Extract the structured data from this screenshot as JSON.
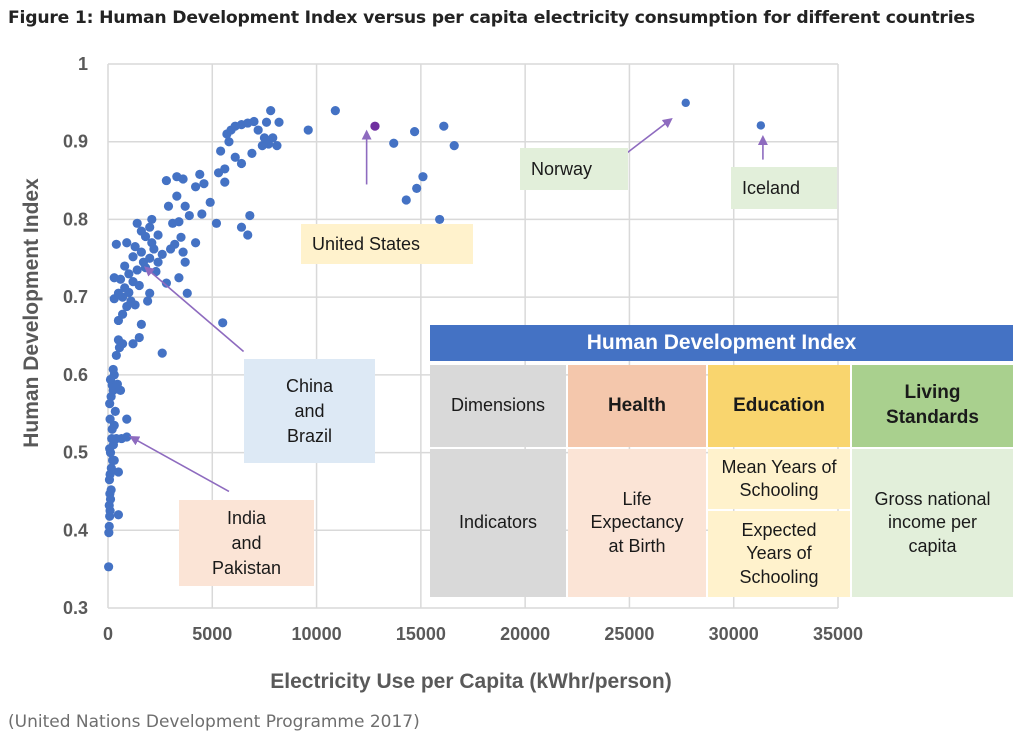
{
  "figure_title": "Figure 1: Human Development Index versus per capita electricity consumption for different countries",
  "source_note": "(United Nations Development Programme 2017)",
  "colors": {
    "points": "#4472c4",
    "highlight_point": "#7030a0",
    "arrow": "#8e6bbf",
    "grid": "#d9d9d9",
    "table_header": "#4472c4",
    "dimension_grey": "#d9d9d9",
    "health_dark": "#f4c7ac",
    "health_light": "#fbe4d6",
    "education_dark": "#f9d56e",
    "education_light": "#fff2cc",
    "living_dark": "#a9d08e",
    "living_light": "#e2efda",
    "us_callout": "#fff2cc",
    "norway_callout": "#e2efda",
    "china_callout": "#dde9f5",
    "india_callout": "#fbe4d6"
  },
  "chart_data": {
    "type": "scatter",
    "title": "",
    "xlabel": "Electricity Use per Capita (kWhr/person)",
    "ylabel": "Human Development Index",
    "xlim": [
      0,
      35000
    ],
    "ylim": [
      0.3,
      1.0
    ],
    "x_ticks": [
      "0",
      "5000",
      "10000",
      "15000",
      "20000",
      "25000",
      "30000",
      "35000"
    ],
    "x_tick_values": [
      0,
      5000,
      10000,
      15000,
      20000,
      25000,
      30000,
      35000
    ],
    "y_ticks": [
      "0.3",
      "0.4",
      "0.5",
      "0.6",
      "0.7",
      "0.8",
      "0.9",
      "1"
    ],
    "y_tick_values": [
      0.3,
      0.4,
      0.5,
      0.6,
      0.7,
      0.8,
      0.9,
      1.0
    ],
    "grid": true,
    "legend": "none",
    "series": [
      {
        "name": "Countries",
        "points": [
          [
            30,
            0.353
          ],
          [
            40,
            0.397
          ],
          [
            60,
            0.405
          ],
          [
            80,
            0.418
          ],
          [
            100,
            0.425
          ],
          [
            60,
            0.432
          ],
          [
            120,
            0.44
          ],
          [
            90,
            0.447
          ],
          [
            150,
            0.452
          ],
          [
            500,
            0.42
          ],
          [
            70,
            0.465
          ],
          [
            100,
            0.472
          ],
          [
            160,
            0.48
          ],
          [
            220,
            0.49
          ],
          [
            120,
            0.5
          ],
          [
            80,
            0.505
          ],
          [
            300,
            0.49
          ],
          [
            500,
            0.475
          ],
          [
            260,
            0.51
          ],
          [
            180,
            0.518
          ],
          [
            400,
            0.518
          ],
          [
            650,
            0.518
          ],
          [
            900,
            0.52
          ],
          [
            200,
            0.53
          ],
          [
            300,
            0.535
          ],
          [
            100,
            0.543
          ],
          [
            900,
            0.543
          ],
          [
            350,
            0.553
          ],
          [
            80,
            0.563
          ],
          [
            150,
            0.572
          ],
          [
            250,
            0.58
          ],
          [
            200,
            0.587
          ],
          [
            120,
            0.594
          ],
          [
            300,
            0.6
          ],
          [
            250,
            0.607
          ],
          [
            600,
            0.58
          ],
          [
            450,
            0.588
          ],
          [
            400,
            0.625
          ],
          [
            550,
            0.635
          ],
          [
            700,
            0.64
          ],
          [
            500,
            0.645
          ],
          [
            1200,
            0.64
          ],
          [
            1500,
            0.648
          ],
          [
            2600,
            0.628
          ],
          [
            5500,
            0.667
          ],
          [
            1600,
            0.665
          ],
          [
            500,
            0.67
          ],
          [
            700,
            0.678
          ],
          [
            900,
            0.688
          ],
          [
            1100,
            0.695
          ],
          [
            300,
            0.698
          ],
          [
            700,
            0.7
          ],
          [
            1300,
            0.69
          ],
          [
            1000,
            0.706
          ],
          [
            1900,
            0.695
          ],
          [
            500,
            0.705
          ],
          [
            800,
            0.712
          ],
          [
            1200,
            0.72
          ],
          [
            600,
            0.723
          ],
          [
            300,
            0.725
          ],
          [
            1500,
            0.715
          ],
          [
            2000,
            0.705
          ],
          [
            3800,
            0.705
          ],
          [
            2800,
            0.718
          ],
          [
            3400,
            0.725
          ],
          [
            1000,
            0.73
          ],
          [
            1400,
            0.735
          ],
          [
            1800,
            0.738
          ],
          [
            2300,
            0.733
          ],
          [
            800,
            0.74
          ],
          [
            1700,
            0.745
          ],
          [
            2000,
            0.75
          ],
          [
            2400,
            0.745
          ],
          [
            3700,
            0.745
          ],
          [
            1200,
            0.752
          ],
          [
            1600,
            0.758
          ],
          [
            2200,
            0.762
          ],
          [
            2600,
            0.755
          ],
          [
            3000,
            0.762
          ],
          [
            3600,
            0.758
          ],
          [
            1300,
            0.765
          ],
          [
            2100,
            0.77
          ],
          [
            3200,
            0.768
          ],
          [
            900,
            0.77
          ],
          [
            400,
            0.768
          ],
          [
            1800,
            0.778
          ],
          [
            2400,
            0.78
          ],
          [
            3500,
            0.777
          ],
          [
            4200,
            0.77
          ],
          [
            1600,
            0.785
          ],
          [
            2000,
            0.79
          ],
          [
            1400,
            0.795
          ],
          [
            5200,
            0.795
          ],
          [
            3100,
            0.795
          ],
          [
            3400,
            0.797
          ],
          [
            4500,
            0.807
          ],
          [
            6400,
            0.79
          ],
          [
            2100,
            0.8
          ],
          [
            3900,
            0.805
          ],
          [
            6800,
            0.805
          ],
          [
            6700,
            0.78
          ],
          [
            2900,
            0.817
          ],
          [
            3700,
            0.817
          ],
          [
            4900,
            0.822
          ],
          [
            3300,
            0.83
          ],
          [
            4200,
            0.842
          ],
          [
            4600,
            0.846
          ],
          [
            2800,
            0.85
          ],
          [
            3300,
            0.855
          ],
          [
            3600,
            0.852
          ],
          [
            5600,
            0.848
          ],
          [
            4400,
            0.858
          ],
          [
            5300,
            0.86
          ],
          [
            5600,
            0.865
          ],
          [
            6400,
            0.872
          ],
          [
            6900,
            0.885
          ],
          [
            7400,
            0.895
          ],
          [
            7700,
            0.897
          ],
          [
            7900,
            0.905
          ],
          [
            8100,
            0.895
          ],
          [
            6100,
            0.88
          ],
          [
            5400,
            0.888
          ],
          [
            5800,
            0.9
          ],
          [
            5700,
            0.91
          ],
          [
            5900,
            0.915
          ],
          [
            6100,
            0.92
          ],
          [
            6400,
            0.922
          ],
          [
            6700,
            0.924
          ],
          [
            7000,
            0.926
          ],
          [
            7600,
            0.925
          ],
          [
            8200,
            0.925
          ],
          [
            7500,
            0.905
          ],
          [
            7200,
            0.915
          ],
          [
            7800,
            0.94
          ],
          [
            9600,
            0.915
          ],
          [
            10900,
            0.94
          ],
          [
            13700,
            0.898
          ],
          [
            14700,
            0.913
          ],
          [
            16100,
            0.92
          ],
          [
            16600,
            0.895
          ],
          [
            15100,
            0.855
          ],
          [
            14800,
            0.84
          ],
          [
            14300,
            0.825
          ],
          [
            15900,
            0.8
          ],
          [
            12800,
            0.92
          ],
          [
            27700,
            0.95
          ],
          [
            31300,
            0.921
          ]
        ]
      }
    ],
    "highlighted": [
      {
        "label": "United States",
        "x": 12800,
        "y": 0.92
      }
    ],
    "annotations": [
      {
        "id": "united-states",
        "text": "United States",
        "lines": [
          "United States"
        ],
        "target": [
          12400,
          0.913
        ],
        "from": [
          12400,
          0.845
        ]
      },
      {
        "id": "norway",
        "text": "Norway",
        "lines": [
          "Norway"
        ],
        "target": [
          27000,
          0.929
        ],
        "from": [
          24900,
          0.886
        ]
      },
      {
        "id": "iceland",
        "text": "Iceland",
        "lines": [
          "Iceland"
        ],
        "target": [
          31400,
          0.906
        ],
        "from": [
          31400,
          0.877
        ]
      },
      {
        "id": "china-brazil",
        "text": "China and Brazil",
        "lines": [
          "China",
          "and",
          "Brazil"
        ],
        "target": [
          1800,
          0.738
        ],
        "from": [
          6500,
          0.63
        ]
      },
      {
        "id": "india-pakistan",
        "text": "India and Pakistan",
        "lines": [
          "India",
          "and",
          "Pakistan"
        ],
        "target": [
          1100,
          0.52
        ],
        "from": [
          5800,
          0.45
        ]
      }
    ]
  },
  "hdi_table": {
    "title": "Human Development Index",
    "row_labels": {
      "dimensions": "Dimensions",
      "indicators": "Indicators"
    },
    "dimensions": {
      "health": "Health",
      "education": "Education",
      "living": "Living Standards"
    },
    "indicators": {
      "health": "Life Expectancy at Birth",
      "education_mean": "Mean Years of Schooling",
      "education_expected": "Expected Years of Schooling",
      "living": "Gross national income per capita"
    }
  }
}
